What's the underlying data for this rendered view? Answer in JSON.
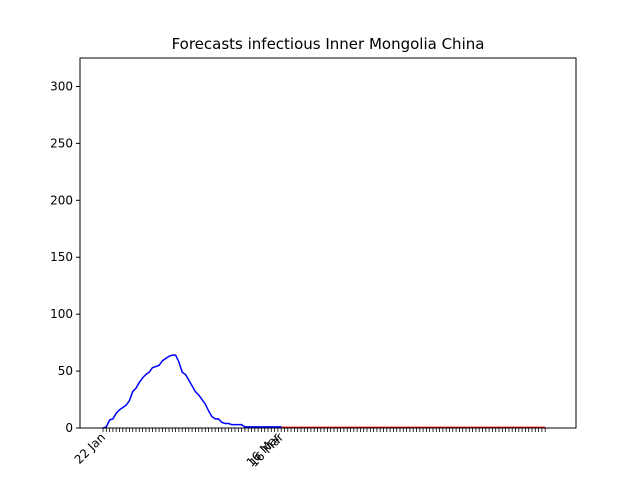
{
  "chart_data": {
    "type": "line",
    "title": "Forecasts infectious Inner Mongolia China",
    "xlabel": "",
    "ylabel": "",
    "x_tick_labels": [
      "22 Jan",
      "16 Mar",
      "16 Mar"
    ],
    "y_ticks": [
      0,
      50,
      100,
      150,
      200,
      250,
      300
    ],
    "ylim": [
      0,
      325
    ],
    "grid": false,
    "colors": {
      "observed": "#0000ff",
      "forecast": "#ff0000"
    },
    "series": [
      {
        "name": "",
        "color": "#0000ff",
        "x": [
          "22 Jan",
          "23 Jan",
          "24 Jan",
          "25 Jan",
          "26 Jan",
          "27 Jan",
          "28 Jan",
          "29 Jan",
          "30 Jan",
          "31 Jan",
          "1 Feb",
          "2 Feb",
          "3 Feb",
          "4 Feb",
          "5 Feb",
          "6 Feb",
          "7 Feb",
          "8 Feb",
          "9 Feb",
          "10 Feb",
          "11 Feb",
          "12 Feb",
          "13 Feb",
          "14 Feb",
          "15 Feb",
          "16 Feb",
          "17 Feb",
          "18 Feb",
          "19 Feb",
          "20 Feb",
          "21 Feb",
          "22 Feb",
          "23 Feb",
          "24 Feb",
          "25 Feb",
          "26 Feb",
          "27 Feb",
          "28 Feb",
          "29 Feb",
          "1 Mar",
          "2 Mar",
          "3 Mar",
          "4 Mar",
          "5 Mar",
          "6 Mar",
          "7 Mar",
          "8 Mar",
          "9 Mar",
          "10 Mar",
          "11 Mar",
          "12 Mar",
          "13 Mar",
          "14 Mar",
          "15 Mar",
          "16 Mar"
        ],
        "values": [
          0,
          1,
          7,
          8,
          13,
          16,
          18,
          20,
          24,
          32,
          35,
          40,
          44,
          47,
          49,
          53,
          54,
          55,
          59,
          61,
          63,
          64,
          64,
          58,
          49,
          47,
          42,
          37,
          32,
          29,
          25,
          21,
          15,
          10,
          8,
          8,
          5,
          4,
          4,
          3,
          3,
          3,
          3,
          1,
          1,
          1,
          1,
          1,
          1,
          1,
          1,
          1,
          1,
          1,
          1
        ]
      },
      {
        "name": "",
        "color": "#ff0000",
        "x_start": "16 Mar",
        "points": 80,
        "values_constant": 0.5
      }
    ]
  }
}
